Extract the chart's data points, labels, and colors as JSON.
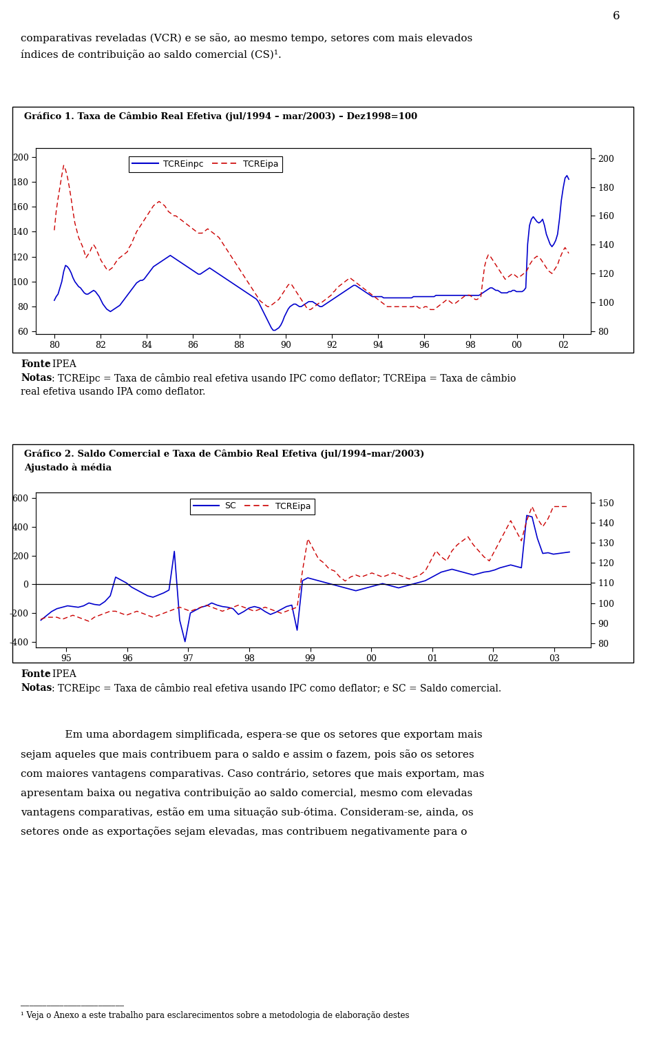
{
  "page_number": "6",
  "text_top_line1": "comparativas reveladas (VCR) e se são, ao mesmo tempo, setores com mais elevados",
  "text_top_line2": "índices de contribuição ao saldo comercial (CS)¹.",
  "chart1_title": "Gráfico 1. Taxa de Câmbio Real Efetiva (jul/1994 – mar/2003) – Dez1998=100",
  "chart1_note1_bold": "Fonte",
  "chart1_note1_normal": ": IPEA",
  "chart1_note2_bold": "Notas",
  "chart1_note2_normal": ": TCREipc = Taxa de câmbio real efetiva usando IPC como deflator; TCREipa = Taxa de câmbio",
  "chart1_note2_cont": "real efetiva usando IPA como deflator.",
  "chart1_legend1": "TCREinpc",
  "chart1_legend2": "TCREipa",
  "chart1_xlabels": [
    "80",
    "82",
    "84",
    "86",
    "88",
    "90",
    "92",
    "94",
    "96",
    "98",
    "00",
    "02"
  ],
  "chart1_ylim": [
    58,
    207
  ],
  "chart1_yright_lim": [
    78,
    207
  ],
  "chart2_title1": "Gráfico 2. Saldo Comercial e Taxa de Câmbio Real Efetiva (jul/1994–mar/2003)",
  "chart2_title2": "Ajustado à média",
  "chart2_note1_bold": "Fonte",
  "chart2_note1_normal": ": IPEA",
  "chart2_note2_bold": "Notas",
  "chart2_note2_normal": ": TCREipc = Taxa de câmbio real efetiva usando IPC como deflator; e SC = Saldo comercial.",
  "chart2_legend1": "SC",
  "chart2_legend2": "TCREipa",
  "chart2_xlabels": [
    "95",
    "96",
    "97",
    "98",
    "99",
    "00",
    "01",
    "02",
    "03"
  ],
  "chart2_ylim": [
    -440,
    640
  ],
  "chart2_yright_lim": [
    78,
    155
  ],
  "text_bottom_indent": "    Em uma abordagem simplificada, espera-se que os setores que exportam mais",
  "text_bottom2": "sejam aqueles que mais contribuem para o saldo e assim o fazem, pois são os setores",
  "text_bottom3": "com maiores vantagens comparativas. Caso contrário, setores que mais exportam, mas",
  "text_bottom4": "apresentam baixa ou negativa contribuição ao saldo comercial, mesmo com elevadas",
  "text_bottom5": "vantagens comparativas, estão em uma situação sub-ótima. Consideram-se, ainda, os",
  "text_bottom6": "setores onde as exportações sejam elevadas, mas contribuem negativamente para o",
  "footnote_line": "¹ Veja o Anexo a este trabalho para esclarecimentos sobre a metodologia de elaboração destes",
  "blue_color": "#0000CD",
  "red_color": "#CC0000",
  "bg_color": "#FFFFFF"
}
